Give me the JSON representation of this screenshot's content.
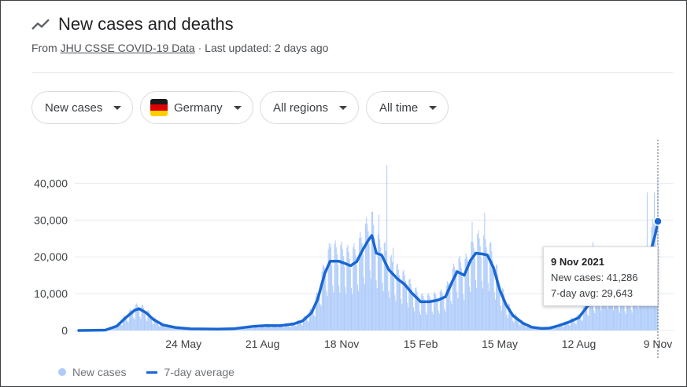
{
  "header": {
    "title": "New cases and deaths",
    "source_prefix": "From",
    "source_link": "JHU CSSE COVID-19 Data",
    "source_suffix": "· Last updated: 2 days ago",
    "icon": "trending-icon"
  },
  "filters": {
    "metric": "New cases",
    "country": "Germany",
    "region": "All regions",
    "time": "All time"
  },
  "tooltip": {
    "date": "9 Nov 2021",
    "cases_line": "New cases: 41,286",
    "avg_line": "7-day avg: 29,643"
  },
  "legend": {
    "bars_label": "New cases",
    "line_label": "7-day average"
  },
  "colors": {
    "bars": "#aecbfa",
    "line": "#1967d2",
    "gridline": "#e8eaed",
    "axis_text": "#3c4043"
  },
  "chart_data": {
    "type": "bar",
    "title": "New cases and deaths",
    "ylim": [
      0,
      45000
    ],
    "yticks": [
      "0",
      "10,000",
      "20,000",
      "30,000",
      "40,000"
    ],
    "ytick_values": [
      0,
      10000,
      20000,
      30000,
      40000
    ],
    "xticks": [
      "24 May",
      "21 Aug",
      "18 Nov",
      "15 Feb",
      "15 May",
      "12 Aug",
      "9 Nov"
    ],
    "xtick_dates": [
      "2020-05-24",
      "2020-08-21",
      "2020-11-18",
      "2021-02-15",
      "2021-05-15",
      "2021-08-12",
      "2021-11-09"
    ],
    "start_date": "2020-01-27",
    "end_date": "2021-11-09",
    "series": [
      {
        "name": "7-day average",
        "points": [
          [
            "2020-01-27",
            0
          ],
          [
            "2020-02-26",
            100
          ],
          [
            "2020-03-10",
            1200
          ],
          [
            "2020-03-20",
            3500
          ],
          [
            "2020-03-30",
            5500
          ],
          [
            "2020-04-04",
            5900
          ],
          [
            "2020-04-12",
            4800
          ],
          [
            "2020-04-20",
            3000
          ],
          [
            "2020-05-01",
            1500
          ],
          [
            "2020-05-15",
            800
          ],
          [
            "2020-06-01",
            450
          ],
          [
            "2020-07-01",
            380
          ],
          [
            "2020-07-20",
            500
          ],
          [
            "2020-08-10",
            1100
          ],
          [
            "2020-08-25",
            1350
          ],
          [
            "2020-09-10",
            1300
          ],
          [
            "2020-09-25",
            1800
          ],
          [
            "2020-10-05",
            2600
          ],
          [
            "2020-10-15",
            4800
          ],
          [
            "2020-10-22",
            8500
          ],
          [
            "2020-10-30",
            15500
          ],
          [
            "2020-11-05",
            18800
          ],
          [
            "2020-11-15",
            18800
          ],
          [
            "2020-11-22",
            18200
          ],
          [
            "2020-11-28",
            17600
          ],
          [
            "2020-12-05",
            18700
          ],
          [
            "2020-12-12",
            22000
          ],
          [
            "2020-12-18",
            24500
          ],
          [
            "2020-12-22",
            25800
          ],
          [
            "2020-12-27",
            21000
          ],
          [
            "2021-01-02",
            20500
          ],
          [
            "2021-01-10",
            16500
          ],
          [
            "2021-01-20",
            14000
          ],
          [
            "2021-01-28",
            12500
          ],
          [
            "2021-02-05",
            10200
          ],
          [
            "2021-02-15",
            7800
          ],
          [
            "2021-02-25",
            7800
          ],
          [
            "2021-03-07",
            8300
          ],
          [
            "2021-03-15",
            9200
          ],
          [
            "2021-03-22",
            13000
          ],
          [
            "2021-03-28",
            16000
          ],
          [
            "2021-04-05",
            15000
          ],
          [
            "2021-04-12",
            19000
          ],
          [
            "2021-04-18",
            21000
          ],
          [
            "2021-04-25",
            20800
          ],
          [
            "2021-05-01",
            20500
          ],
          [
            "2021-05-08",
            17000
          ],
          [
            "2021-05-15",
            11000
          ],
          [
            "2021-05-22",
            7000
          ],
          [
            "2021-05-30",
            4000
          ],
          [
            "2021-06-10",
            2000
          ],
          [
            "2021-06-20",
            900
          ],
          [
            "2021-07-01",
            550
          ],
          [
            "2021-07-10",
            650
          ],
          [
            "2021-07-20",
            1300
          ],
          [
            "2021-07-31",
            2200
          ],
          [
            "2021-08-12",
            3500
          ],
          [
            "2021-08-25",
            7600
          ],
          [
            "2021-09-05",
            9800
          ],
          [
            "2021-09-15",
            10800
          ],
          [
            "2021-09-25",
            9000
          ],
          [
            "2021-10-05",
            7900
          ],
          [
            "2021-10-15",
            9500
          ],
          [
            "2021-10-22",
            13000
          ],
          [
            "2021-10-28",
            18500
          ],
          [
            "2021-11-02",
            22500
          ],
          [
            "2021-11-06",
            26000
          ],
          [
            "2021-11-09",
            29643
          ]
        ]
      },
      {
        "name": "New cases",
        "peaks": [
          [
            "2020-04-02",
            7000
          ],
          [
            "2020-11-06",
            23500
          ],
          [
            "2020-12-30",
            31500
          ],
          [
            "2021-01-08",
            45000
          ],
          [
            "2021-01-15",
            22500
          ],
          [
            "2021-04-14",
            29500
          ],
          [
            "2021-04-28",
            32000
          ],
          [
            "2021-08-28",
            24000
          ],
          [
            "2021-10-28",
            37500
          ],
          [
            "2021-11-05",
            37500
          ],
          [
            "2021-11-09",
            41286
          ]
        ]
      }
    ],
    "legend_position": "bottom-left",
    "grid": true
  }
}
